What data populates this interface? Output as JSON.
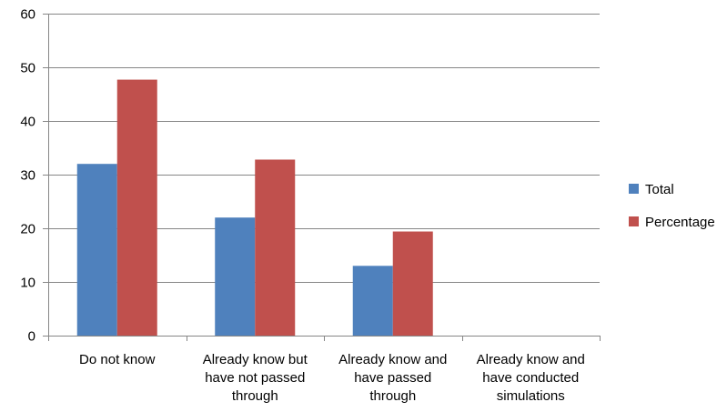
{
  "chart_data": {
    "type": "bar",
    "categories": [
      [
        "Do not know"
      ],
      [
        "Already know but",
        "have not passed",
        "through"
      ],
      [
        "Already know and",
        "have passed",
        "through"
      ],
      [
        "Already know and",
        "have conducted",
        "simulations"
      ]
    ],
    "series": [
      {
        "name": "Total",
        "color": "#4F81BD",
        "values": [
          32,
          22,
          13,
          0
        ]
      },
      {
        "name": "Percentage",
        "color": "#C0504D",
        "values": [
          47.7,
          32.8,
          19.4,
          0
        ]
      }
    ],
    "ylim": [
      0,
      60
    ],
    "yticks": [
      "0",
      "10",
      "20",
      "30",
      "40",
      "50",
      "60"
    ],
    "grid": true,
    "legend": "right",
    "title": "",
    "xlabel": "",
    "ylabel": ""
  }
}
